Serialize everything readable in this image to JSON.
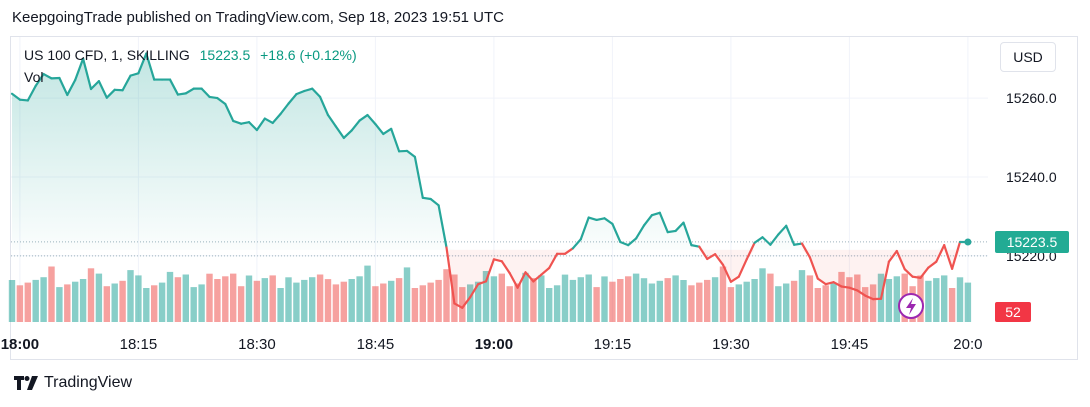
{
  "header": {
    "text": "KeepgoingTrade published on TradingView.com, Sep 18, 2023 19:51 UTC"
  },
  "legend": {
    "symbol": "US 100 CFD, 1, SKILLING",
    "price": "15223.5",
    "change": "+18.6 (+0.12%)",
    "volume_label": "Vol"
  },
  "toolbar": {
    "currency_label": "USD"
  },
  "footer": {
    "logo_text": "TradingView"
  },
  "colors": {
    "up": "#26a69a",
    "down": "#ef5350",
    "price_badge": "#22ab94",
    "volume_badge": "#f23645",
    "flash": "#9c27b0"
  },
  "chart_data": {
    "type": "line",
    "x_ticks": [
      "18:00",
      "18:15",
      "18:30",
      "18:45",
      "19:00",
      "19:15",
      "19:30",
      "19:45",
      "20:0"
    ],
    "y_ticks": [
      15260.0,
      15240.0,
      15220.0
    ],
    "ylim": [
      15203.2,
      15275.5
    ],
    "reference_price": 15221.5,
    "last_price": 15223.5,
    "volume_badge": "52",
    "start_time": "17:59",
    "series": [
      {
        "values": [
          15261.1,
          15259.6,
          15259.4,
          15263.1,
          15266.1,
          15265.0,
          15265.1,
          15260.8,
          15264.6,
          15270.0,
          15262.3,
          15264.3,
          15260.1,
          15262.1,
          15262.0,
          15265.7,
          15266.3,
          15271.3,
          15264.7,
          15264.7,
          15264.7,
          15260.9,
          15261.2,
          15262.4,
          15262.4,
          15260.3,
          15260.0,
          15258.5,
          15254.2,
          15253.5,
          15253.9,
          15251.9,
          15254.8,
          15253.7,
          15256.0,
          15258.6,
          15261.0,
          15261.8,
          15262.4,
          15260.3,
          15255.7,
          15252.8,
          15249.9,
          15251.8,
          15254.3,
          15255.7,
          15253.4,
          15250.9,
          15252.2,
          15246.5,
          15246.6,
          15245.1,
          15234.7,
          15234.4,
          15232.8,
          15222.1,
          15207.9,
          15206.8,
          15209.5,
          15212.8,
          15213.5,
          15219.1,
          15218.6,
          15215.6,
          15211.9,
          15215.8,
          15213.5,
          15215.2,
          15216.9,
          15220.5,
          15220.5,
          15221.9,
          15224.2,
          15229.7,
          15229.1,
          15229.5,
          15228.1,
          15223.5,
          15222.7,
          15224.4,
          15227.7,
          15230.3,
          15230.9,
          15226.0,
          15226.3,
          15228.4,
          15222.7,
          15222.3,
          15219.2,
          15220.4,
          15217.7,
          15213.4,
          15214.7,
          15219.1,
          15223.3,
          15224.7,
          15222.8,
          15225.4,
          15227.6,
          15222.8,
          15223.1,
          15219.6,
          15214.2,
          15212.8,
          15213.3,
          15212.2,
          15211.9,
          15211.2,
          15209.9,
          15209.0,
          15209.1,
          15218.5,
          15221.2,
          15216.6,
          15214.7,
          15214.4,
          15217.0,
          15218.5,
          15222.7,
          15216.7,
          15223.5,
          15223.5
        ]
      }
    ]
  }
}
